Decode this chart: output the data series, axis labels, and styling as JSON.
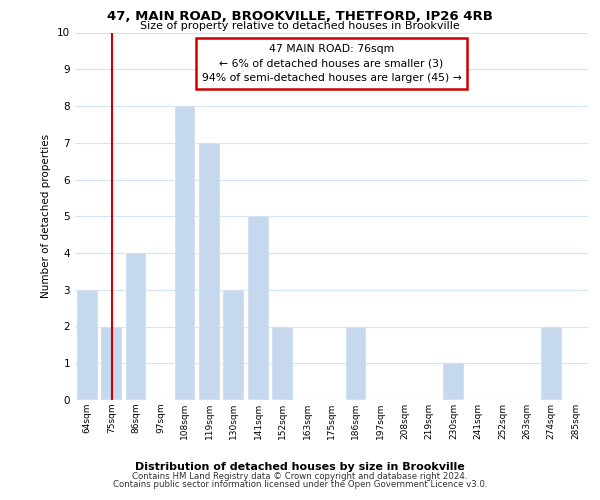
{
  "title": "47, MAIN ROAD, BROOKVILLE, THETFORD, IP26 4RB",
  "subtitle": "Size of property relative to detached houses in Brookville",
  "xlabel": "Distribution of detached houses by size in Brookville",
  "ylabel": "Number of detached properties",
  "categories": [
    "64sqm",
    "75sqm",
    "86sqm",
    "97sqm",
    "108sqm",
    "119sqm",
    "130sqm",
    "141sqm",
    "152sqm",
    "163sqm",
    "175sqm",
    "186sqm",
    "197sqm",
    "208sqm",
    "219sqm",
    "230sqm",
    "241sqm",
    "252sqm",
    "263sqm",
    "274sqm",
    "285sqm"
  ],
  "values": [
    3,
    2,
    4,
    0,
    8,
    7,
    3,
    5,
    2,
    0,
    0,
    2,
    0,
    0,
    0,
    1,
    0,
    0,
    0,
    2,
    0
  ],
  "bar_color": "#c5d8ed",
  "bar_edge_color": "#c5d8ed",
  "highlight_bar_index": 1,
  "highlight_line_color": "#cc0000",
  "annotation_line1": "47 MAIN ROAD: 76sqm",
  "annotation_line2": "← 6% of detached houses are smaller (3)",
  "annotation_line3": "94% of semi-detached houses are larger (45) →",
  "annotation_box_color": "#ffffff",
  "annotation_box_edge_color": "#cc0000",
  "ylim": [
    0,
    10
  ],
  "yticks": [
    0,
    1,
    2,
    3,
    4,
    5,
    6,
    7,
    8,
    9,
    10
  ],
  "grid_color": "#d0e4f7",
  "background_color": "#ffffff",
  "footer_line1": "Contains HM Land Registry data © Crown copyright and database right 2024.",
  "footer_line2": "Contains public sector information licensed under the Open Government Licence v3.0."
}
